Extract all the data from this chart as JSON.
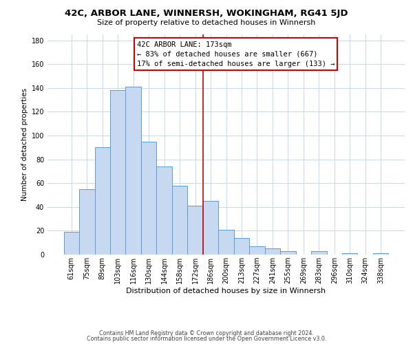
{
  "title": "42C, ARBOR LANE, WINNERSH, WOKINGHAM, RG41 5JD",
  "subtitle": "Size of property relative to detached houses in Winnersh",
  "xlabel": "Distribution of detached houses by size in Winnersh",
  "ylabel": "Number of detached properties",
  "bar_labels": [
    "61sqm",
    "75sqm",
    "89sqm",
    "103sqm",
    "116sqm",
    "130sqm",
    "144sqm",
    "158sqm",
    "172sqm",
    "186sqm",
    "200sqm",
    "213sqm",
    "227sqm",
    "241sqm",
    "255sqm",
    "269sqm",
    "283sqm",
    "296sqm",
    "310sqm",
    "324sqm",
    "338sqm"
  ],
  "bar_values": [
    19,
    55,
    90,
    138,
    141,
    95,
    74,
    58,
    41,
    45,
    21,
    14,
    7,
    5,
    3,
    0,
    3,
    0,
    1,
    0,
    1
  ],
  "bar_color": "#c6d9f0",
  "bar_edge_color": "#5b9bd5",
  "vline_idx": 8,
  "vline_color": "#cc0000",
  "annotation_title": "42C ARBOR LANE: 173sqm",
  "annotation_line1": "← 83% of detached houses are smaller (667)",
  "annotation_line2": "17% of semi-detached houses are larger (133) →",
  "annotation_box_color": "#ffffff",
  "annotation_box_edge": "#cc0000",
  "ylim": [
    0,
    185
  ],
  "yticks": [
    0,
    20,
    40,
    60,
    80,
    100,
    120,
    140,
    160,
    180
  ],
  "footer_line1": "Contains HM Land Registry data © Crown copyright and database right 2024.",
  "footer_line2": "Contains public sector information licensed under the Open Government Licence v3.0.",
  "background_color": "#ffffff",
  "grid_color": "#c8d8e8",
  "title_fontsize": 9.5,
  "subtitle_fontsize": 8,
  "ylabel_fontsize": 7.5,
  "xlabel_fontsize": 8,
  "tick_fontsize": 7,
  "annotation_fontsize": 7.5,
  "footer_fontsize": 5.8
}
